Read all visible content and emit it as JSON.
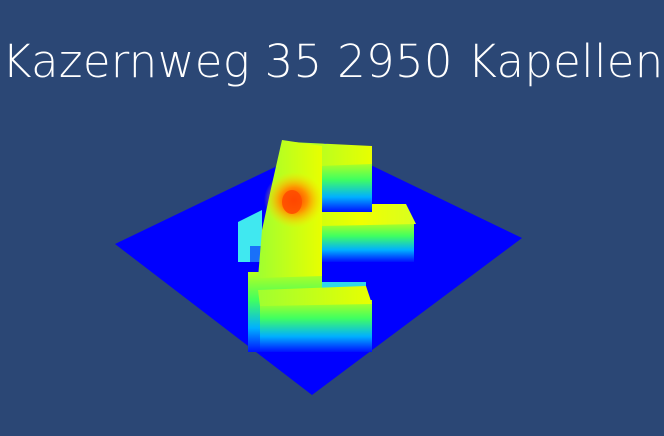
{
  "viewer": {
    "title": "Kazernweg 35 2950 Kapellen"
  },
  "colors": {
    "background": "#2b4775",
    "ground": "#0000ff",
    "title_text": "#ffffff",
    "height_low": "#0000ff",
    "height_mid": "#00ff80",
    "height_high": "#ffff00",
    "height_peak": "#ff4000"
  }
}
